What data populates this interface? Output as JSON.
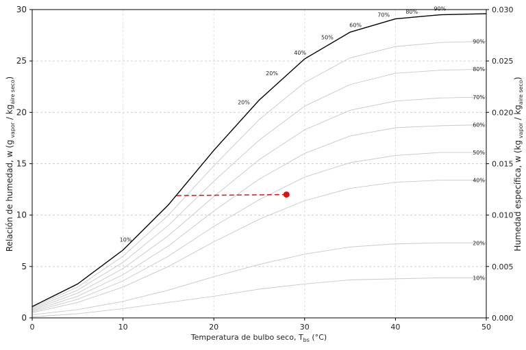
{
  "chart_data": {
    "type": "line",
    "xlabel": [
      {
        "text": "Temperatura de bulbo seco, T"
      },
      {
        "sub": "bs"
      },
      {
        "text": " (°C)"
      }
    ],
    "ylabel": [
      {
        "text": "Relación de humedad, w (g"
      },
      {
        "sub": " vapor"
      },
      {
        "text": " / kg"
      },
      {
        "sub": "aire seco"
      },
      {
        "text": ")"
      }
    ],
    "y2label": [
      {
        "text": "Humedad específica, w (kg"
      },
      {
        "sub": " vapor"
      },
      {
        "text": " / kg"
      },
      {
        "sub": "aire seco"
      },
      {
        "text": ")"
      }
    ],
    "xlim": [
      0,
      50
    ],
    "xticks": [
      0,
      10,
      20,
      30,
      40,
      50
    ],
    "ylim": [
      0,
      30
    ],
    "yticks": [
      0,
      5,
      10,
      15,
      20,
      25,
      30
    ],
    "y2lim": [
      0,
      0.03
    ],
    "y2ticks": [
      {
        "value": 0,
        "label": "0.000"
      },
      0.005,
      {
        "value": 0.01,
        "label": "0.010"
      },
      0.015,
      {
        "value": 0.02,
        "label": "0.020"
      },
      0.025,
      {
        "value": 0.03,
        "label": "0.030"
      }
    ],
    "grid": true,
    "x": [
      0,
      5,
      10,
      15,
      20,
      25,
      30,
      35,
      40,
      45,
      50
    ],
    "series": [
      {
        "color": "#000000",
        "values": [
          1.1,
          3.3,
          6.6,
          11,
          16.3,
          21.2,
          25.2,
          27.8,
          29.1,
          29.5,
          29.6
        ]
      },
      {
        "name": "10%",
        "color": "#c8c8c8",
        "values": [
          0.1,
          0.4,
          0.9,
          1.5,
          2.1,
          2.8,
          3.3,
          3.7,
          3.8,
          3.9,
          3.9
        ]
      },
      {
        "name": "20%",
        "color": "#c8c8c8",
        "values": [
          0.3,
          0.8,
          1.6,
          2.7,
          4.0,
          5.2,
          6.2,
          6.9,
          7.2,
          7.3,
          7.3
        ]
      },
      {
        "name": "40%",
        "color": "#c8c8c8",
        "values": [
          0.5,
          1.5,
          3.0,
          5.0,
          7.4,
          9.6,
          11.4,
          12.6,
          13.2,
          13.4,
          13.4
        ]
      },
      {
        "name": "50%",
        "color": "#c8c8c8",
        "values": [
          0.6,
          1.8,
          3.6,
          6.0,
          8.9,
          11.5,
          13.7,
          15.1,
          15.8,
          16.1,
          16.1
        ]
      },
      {
        "name": "60%",
        "color": "#c8c8c8",
        "values": [
          0.7,
          2.1,
          4.2,
          7.0,
          10.4,
          13.5,
          16.0,
          17.7,
          18.5,
          18.7,
          18.8
        ]
      },
      {
        "name": "70%",
        "color": "#c8c8c8",
        "values": [
          0.8,
          2.4,
          4.8,
          8.0,
          11.8,
          15.4,
          18.3,
          20.2,
          21.1,
          21.4,
          21.5
        ]
      },
      {
        "name": "80%",
        "color": "#c8c8c8",
        "values": [
          0.9,
          2.7,
          5.4,
          9.0,
          13.3,
          17.3,
          20.6,
          22.7,
          23.8,
          24.1,
          24.2
        ]
      },
      {
        "name": "90%",
        "color": "#c8c8c8",
        "values": [
          1.0,
          3.0,
          6.0,
          10.0,
          14.8,
          19.3,
          22.9,
          25.3,
          26.4,
          26.8,
          26.9
        ]
      }
    ],
    "dashed_line": {
      "color": "#e01010",
      "x": [
        15.9,
        28
      ],
      "values": [
        11.9,
        12.0
      ]
    },
    "marker": {
      "color": "#e01010",
      "x": 28,
      "y": 12
    },
    "annotations": [
      {
        "text": "10%",
        "x": 10.3,
        "y": 7.6
      },
      {
        "text": "20%",
        "x": 23.3,
        "y": 21.0
      },
      {
        "text": "20%",
        "x": 26.4,
        "y": 23.8
      },
      {
        "text": "40%",
        "x": 29.5,
        "y": 25.8
      },
      {
        "text": "50%",
        "x": 32.5,
        "y": 27.3
      },
      {
        "text": "60%",
        "x": 35.6,
        "y": 28.5
      },
      {
        "text": "70%",
        "x": 38.7,
        "y": 29.5
      },
      {
        "text": "80%",
        "x": 41.8,
        "y": 29.8
      },
      {
        "text": "90%",
        "x": 44.9,
        "y": 30.1
      }
    ]
  }
}
